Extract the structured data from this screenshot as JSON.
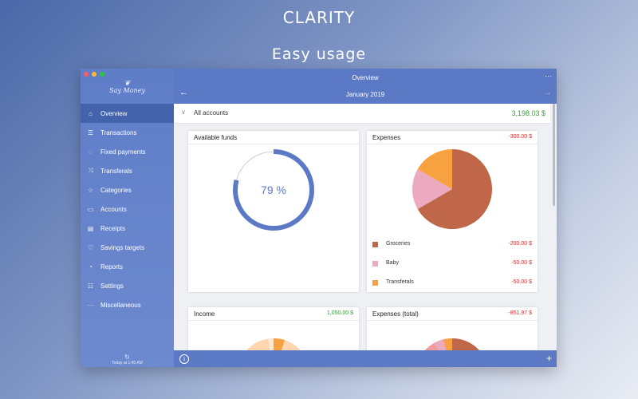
{
  "headline": {
    "title": "CLARITY",
    "subtitle": "Easy usage"
  },
  "app": {
    "logo": "Say Money"
  },
  "sidebar": {
    "items": [
      {
        "label": "Overview",
        "icon": "home-icon",
        "glyph": "⌂",
        "active": true
      },
      {
        "label": "Transactions",
        "icon": "list-icon",
        "glyph": "☰"
      },
      {
        "label": "Fixed payments",
        "icon": "cycle-icon",
        "glyph": "◌"
      },
      {
        "label": "Transferals",
        "icon": "shuffle-icon",
        "glyph": "⤨"
      },
      {
        "label": "Categories",
        "icon": "star-icon",
        "glyph": "☆"
      },
      {
        "label": "Accounts",
        "icon": "book-icon",
        "glyph": "▭"
      },
      {
        "label": "Receipts",
        "icon": "receipt-icon",
        "glyph": "▤"
      },
      {
        "label": "Savings targets",
        "icon": "heart-icon",
        "glyph": "♡"
      },
      {
        "label": "Reports",
        "icon": "gauge-icon",
        "glyph": "◔"
      },
      {
        "label": "Settings",
        "icon": "sliders-icon",
        "glyph": "☷"
      },
      {
        "label": "Miscellaneous",
        "icon": "dots-icon",
        "glyph": "···"
      }
    ],
    "sync": "Today at 1:45 AM"
  },
  "header": {
    "title": "Overview",
    "month": "January 2019"
  },
  "accounts": {
    "label": "All accounts",
    "amount": "3,198.03 $"
  },
  "cards": {
    "funds": {
      "title": "Available funds",
      "percent_text": "79 %",
      "percent": 0.79
    },
    "expenses": {
      "title": "Expenses",
      "value": "-300.00 $",
      "legend": [
        {
          "name": "Groceries",
          "value": "-200.00 $",
          "color": "#c0674a"
        },
        {
          "name": "Baby",
          "value": "-50.00 $",
          "color": "#ebaabf"
        },
        {
          "name": "Transferals",
          "value": "-50.00 $",
          "color": "#f8a141"
        }
      ]
    },
    "income": {
      "title": "Income",
      "value": "1,050.00 $"
    },
    "expenses_total": {
      "title": "Expenses (total)",
      "value": "-851.97 $"
    }
  },
  "colors": {
    "accent": "#5b79c4",
    "sidebar": "#6785ca",
    "active": "#4363ad",
    "positive": "#3a9a3a",
    "negative": "#d42f2f",
    "ring": "#5b79c4",
    "traffic": [
      "#fc5f57",
      "#fdbc2e",
      "#28c840"
    ]
  },
  "chart_data": [
    {
      "type": "pie",
      "title": "Expenses",
      "categories": [
        "Groceries",
        "Baby",
        "Transferals"
      ],
      "values": [
        200,
        50,
        50
      ]
    }
  ]
}
